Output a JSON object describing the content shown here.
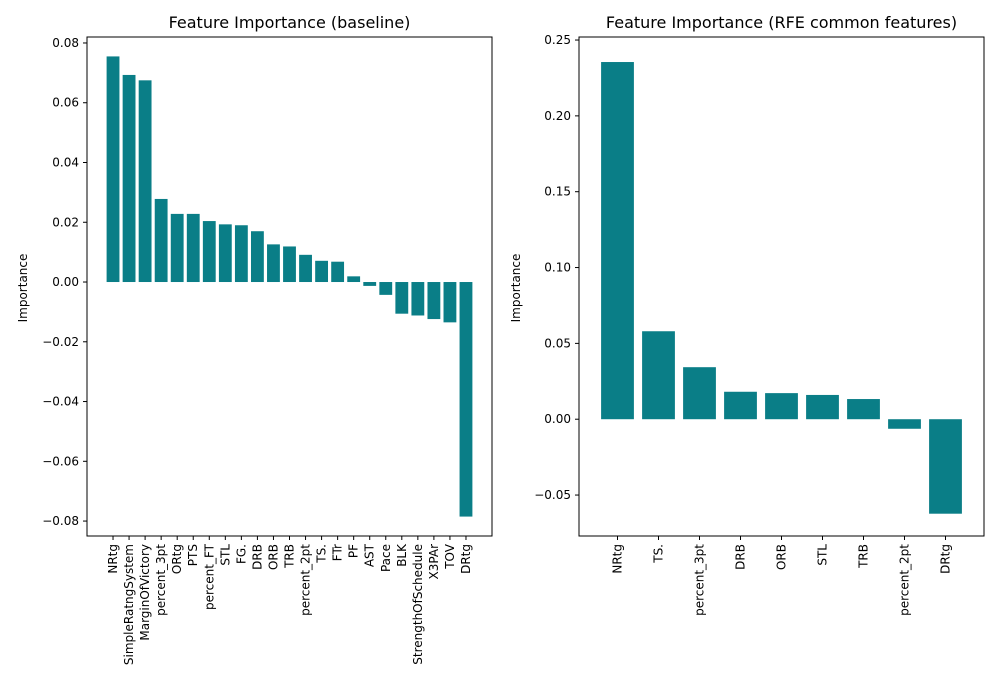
{
  "chart_data": [
    {
      "type": "bar",
      "title": "Feature Importance (baseline)",
      "xlabel": "",
      "ylabel": "Importance",
      "ylim": [
        -0.085,
        0.082
      ],
      "yticks": [
        -0.08,
        -0.06,
        -0.04,
        -0.02,
        0.0,
        0.02,
        0.04,
        0.06,
        0.08
      ],
      "ytick_labels": [
        "−0.08",
        "−0.06",
        "−0.04",
        "−0.02",
        "0.00",
        "0.02",
        "0.04",
        "0.06",
        "0.08"
      ],
      "grid": false,
      "color": "#0a7e87",
      "categories": [
        "NRtg",
        "SimpleRatngSystem",
        "MarginOfVictory",
        "percent_3pt",
        "ORtg",
        "PTS",
        "percent_FT",
        "STL",
        "FG.",
        "DRB",
        "ORB",
        "TRB",
        "percent_2pt",
        "TS.",
        "FTr",
        "PF",
        "AST",
        "Pace",
        "BLK",
        "StrengthOfSchedule",
        "X3PAr",
        "TOV",
        "DRtg"
      ],
      "values": [
        0.0755,
        0.0693,
        0.0675,
        0.0278,
        0.0228,
        0.0228,
        0.0204,
        0.0193,
        0.019,
        0.017,
        0.0126,
        0.0119,
        0.0091,
        0.0071,
        0.0068,
        0.0019,
        -0.0013,
        -0.0043,
        -0.0106,
        -0.0112,
        -0.0124,
        -0.0135,
        -0.0785
      ]
    },
    {
      "type": "bar",
      "title": "Feature Importance (RFE common features)",
      "xlabel": "",
      "ylabel": "Importance",
      "ylim": [
        -0.077,
        0.252
      ],
      "yticks": [
        -0.05,
        0.0,
        0.05,
        0.1,
        0.15,
        0.2,
        0.25
      ],
      "ytick_labels": [
        "−0.05",
        "0.00",
        "0.05",
        "0.10",
        "0.15",
        "0.20",
        "0.25"
      ],
      "grid": false,
      "color": "#0a7e87",
      "categories": [
        "NRtg",
        "TS.",
        "percent_3pt",
        "DRB",
        "ORB",
        "STL",
        "TRB",
        "percent_2pt",
        "DRtg"
      ],
      "values": [
        0.2355,
        0.058,
        0.0343,
        0.0181,
        0.0172,
        0.016,
        0.0133,
        -0.0063,
        -0.0623
      ]
    }
  ]
}
